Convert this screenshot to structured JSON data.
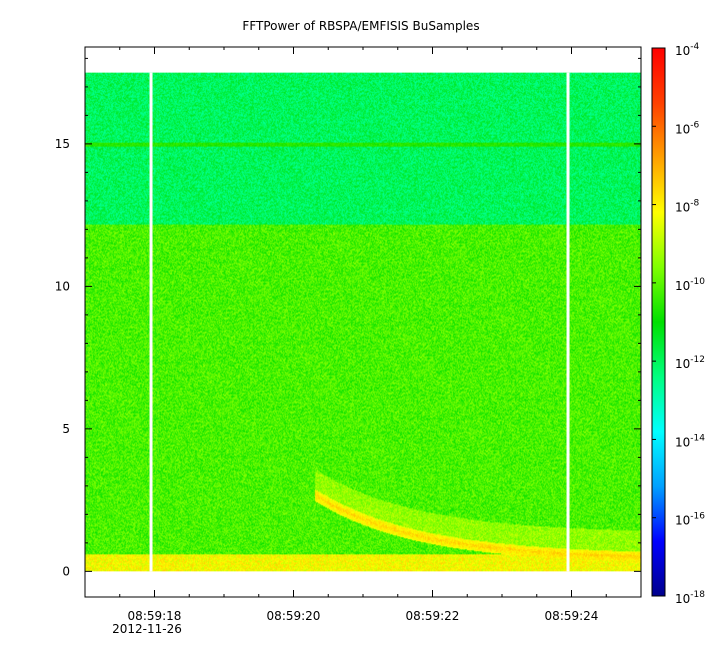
{
  "chart_data": {
    "type": "heatmap",
    "title": "FFTPower of RBSPA/EMFISIS  BuSamples",
    "xlabel": "",
    "ylabel": "",
    "date_label": "2012-11-26",
    "x_ticks": [
      {
        "label": "08:59:18",
        "value": 18.0
      },
      {
        "label": "08:59:20",
        "value": 20.0
      },
      {
        "label": "08:59:22",
        "value": 22.0
      },
      {
        "label": "08:59:24",
        "value": 24.0
      }
    ],
    "xlim_seconds_after_08_59": [
      17.0,
      25.0
    ],
    "y_ticks": [
      0,
      5,
      10,
      15
    ],
    "ylim": [
      -0.9,
      18.4
    ],
    "data_extent": {
      "y_top": 17.5,
      "x_start": 17.0,
      "x_end": 25.0
    },
    "gap_columns_seconds": [
      17.95,
      23.95
    ],
    "colorbar": {
      "scale": "log",
      "range": [
        1e-18,
        0.0001
      ],
      "ticks": [
        {
          "base": "10",
          "exp": "-4",
          "value": -4
        },
        {
          "base": "10",
          "exp": "-6",
          "value": -6
        },
        {
          "base": "10",
          "exp": "-8",
          "value": -8
        },
        {
          "base": "10",
          "exp": "-10",
          "value": -10
        },
        {
          "base": "10",
          "exp": "-12",
          "value": -12
        },
        {
          "base": "10",
          "exp": "-14",
          "value": -14
        },
        {
          "base": "10",
          "exp": "-16",
          "value": -16
        },
        {
          "base": "10",
          "exp": "-18",
          "value": -18
        }
      ],
      "colors": [
        "#00008c",
        "#0000ff",
        "#00a0ff",
        "#00ffff",
        "#00ff80",
        "#00e000",
        "#80ff00",
        "#ffff00",
        "#ffa000",
        "#ff4000",
        "#ff0000"
      ]
    },
    "bands": [
      {
        "y_range": [
          12.2,
          17.5
        ],
        "log_power": -12.0
      },
      {
        "y_range": [
          0.6,
          12.2
        ],
        "log_power": -10.2
      },
      {
        "y_range": [
          0.0,
          0.6
        ],
        "log_power": -8.2
      }
    ],
    "features": [
      {
        "name": "line",
        "y": 15.0,
        "log_power": -10.6
      },
      {
        "name": "falling-tone",
        "x_start": 20.3,
        "y_start": 2.7,
        "x_end": 25.0,
        "y_end": 0.45,
        "log_power": -7.6
      }
    ]
  }
}
